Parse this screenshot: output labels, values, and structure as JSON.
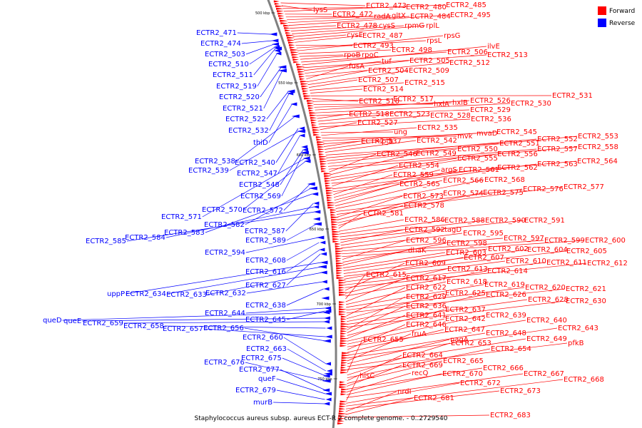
{
  "legend": {
    "forward_label": "Forward",
    "reverse_label": "Reverse",
    "forward_color": "#ff0000",
    "reverse_color": "#0000ff"
  },
  "caption": "Staphylococcus aureus subsp. aureus ECT-R 2 complete genome. - 0..2729540",
  "ticks": [
    "500 kbp",
    "550 kbp",
    "600 kbp",
    "650 kbp",
    "700 kbp",
    "750 kbp"
  ],
  "labels": {
    "forward": [
      "ECTR2_473",
      "lysS",
      "ECTR2_480",
      "ECTR2_485",
      "ECTR2_472",
      "radA",
      "gltX",
      "ECTR2_484",
      "ECTR2_495",
      "ECTR2_478",
      "cysS",
      "rpmG",
      "rplL",
      "cysE",
      "ECTR2_487",
      "ECTR2_493",
      "rpsL",
      "rpsG",
      "ECTR2_498",
      "rpoB",
      "rpoC",
      "ECTR2_506",
      "ilvE",
      "ECTR2_513",
      "tuf",
      "ECTR2_505",
      "ECTR2_512",
      "fusA",
      "ECTR2_504",
      "ECTR2_509",
      "ECTR2_507",
      "ECTR2_515",
      "ECTR2_514",
      "ECTR2_531",
      "ECTR2_516",
      "ECTR2_517",
      "hxlA",
      "hxlB",
      "ECTR2_526",
      "ECTR2_530",
      "ECTR2_529",
      "ECTR2_518",
      "ECTR2_523",
      "ECTR2_528",
      "ECTR2_536",
      "ECTR2_527",
      "ung",
      "ECTR2_535",
      "mvk",
      "mvaD",
      "ECTR2_545",
      "ECTR2_537",
      "pta",
      "ECTR2_542",
      "ECTR2_551",
      "ECTR2_552",
      "ECTR2_553",
      "ECTR2_550",
      "ECTR2_557",
      "ECTR2_558",
      "ECTR2_546",
      "ECTR2_549",
      "ECTR2_555",
      "ECTR2_556",
      "ECTR2_564",
      "ECTR2_554",
      "ECTR2_562",
      "ECTR2_563",
      "ECTR2_559",
      "argS",
      "ECTR2_561",
      "ECTR2_565",
      "ECTR2_566",
      "ECTR2_568",
      "ECTR2_576",
      "ECTR2_577",
      "ECTR2_573",
      "ECTR2_574",
      "ECTR2_575",
      "ECTR2_578",
      "ECTR2_581",
      "ECTR2_586",
      "ECTR2_588",
      "ECTR2_590",
      "ECTR2_591",
      "ECTR2_592",
      "tagD",
      "ECTR2_595",
      "ECTR2_597",
      "ECTR2_599",
      "ECTR2_600",
      "ECTR2_596",
      "ECTR2_598",
      "dhaK",
      "ECTR2_603",
      "ECTR2_602",
      "ECTR2_604",
      "ECTR2_605",
      "ECTR2_607",
      "ECTR2_610",
      "ECTR2_611",
      "ECTR2_612",
      "ECTR2_609",
      "ECTR2_613",
      "ECTR2_614",
      "ECTR2_615",
      "ECTR2_617",
      "ECTR2_618",
      "ECTR2_619",
      "ECTR2_620",
      "ECTR2_621",
      "ECTR2_622",
      "ECTR2_625",
      "ECTR2_626",
      "ECTR2_628",
      "ECTR2_630",
      "ECTR2_629",
      "ECTR2_636",
      "ECTR2_637",
      "ECTR2_641",
      "ECTR2_642",
      "ECTR2_639",
      "ECTR2_640",
      "ECTR2_646",
      "ECTR2_647",
      "ECTR2_648",
      "ECTR2_643",
      "fruA",
      "nagA",
      "ECTR2_649",
      "pfkB",
      "ECTR2_655",
      "ECTR2_653",
      "ECTR2_654",
      "ECTR2_664",
      "ECTR2_665",
      "ECTR2_669",
      "ECTR2_666",
      "recQ",
      "ECTR2_670",
      "ECTR2_667",
      "hisC",
      "ECTR2_672",
      "ECTR2_668",
      "ECTR2_673",
      "nrdI",
      "ECTR2_681",
      "ECTR2_683"
    ],
    "reverse": [
      "ECTR2_471",
      "ECTR2_474",
      "ECTR2_503",
      "ECTR2_510",
      "ECTR2_511",
      "ECTR2_519",
      "ECTR2_520",
      "ECTR2_521",
      "ECTR2_522",
      "ECTR2_532",
      "thiD",
      "ECTR2_538",
      "ECTR2_540",
      "ECTR2_539",
      "ECTR2_547",
      "ECTR2_548",
      "ECTR2_569",
      "ECTR2_571",
      "ECTR2_570",
      "ECTR2_572",
      "ECTR2_582",
      "ECTR2_583",
      "ECTR2_587",
      "ECTR2_584",
      "ECTR2_585",
      "ECTR2_589",
      "ECTR2_594",
      "ECTR2_608",
      "ECTR2_616",
      "ECTR2_627",
      "uppP",
      "ECTR2_634",
      "ECTR2_633",
      "ECTR2_632",
      "ECTR2_638",
      "ECTR2_644",
      "ECTR2_645",
      "queD",
      "queE",
      "ECTR2_659",
      "ECTR2_658",
      "ECTR2_657",
      "ECTR2_656",
      "ECTR2_660",
      "ECTR2_663",
      "ECTR2_675",
      "ECTR2_676",
      "ECTR2_677",
      "queF",
      "ECTR2_679",
      "murB"
    ]
  }
}
